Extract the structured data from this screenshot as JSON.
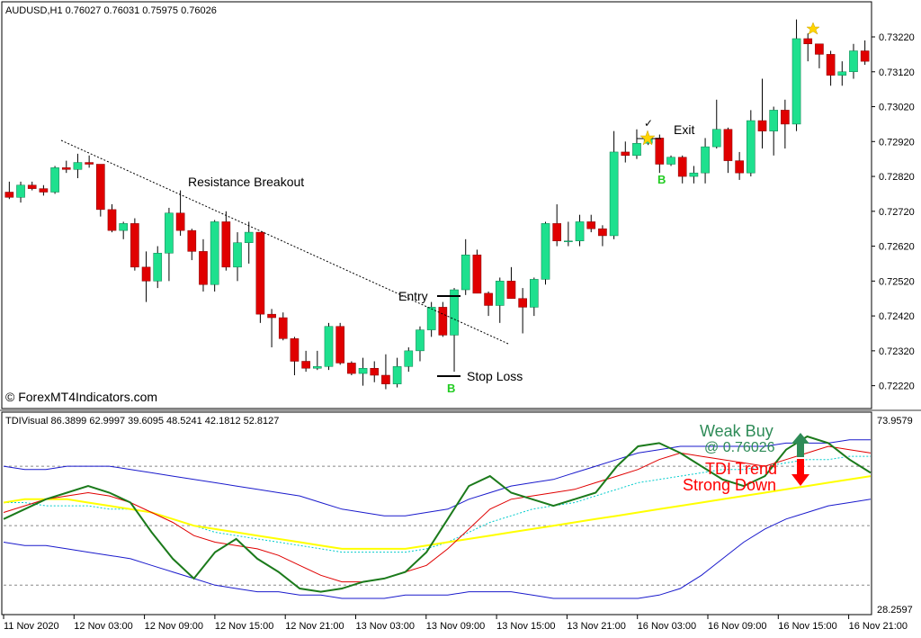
{
  "main_panel": {
    "symbol_info": "AUDUSD,H1  0.76027 0.76031 0.75975 0.76026",
    "watermark": "© ForexMT4Indicators.com",
    "price_ticks": [
      "0.73220",
      "0.73120",
      "0.73020",
      "0.72920",
      "0.72820",
      "0.72720",
      "0.72620",
      "0.72520",
      "0.72420",
      "0.72320",
      "0.72220"
    ],
    "annotations": {
      "resistance_breakout": "Resistance Breakout",
      "entry": "Entry",
      "stop_loss": "Stop Loss",
      "exit": "Exit",
      "buy_marker_1": "B",
      "buy_marker_2": "B",
      "check": "✓"
    }
  },
  "indicator_panel": {
    "header": "TDIVisual 86.3899 62.9997 39.6095 48.5241 42.1812 52.8127",
    "top_tick": "73.9579",
    "bottom_tick": "28.2597",
    "signal_text_1": "Weak Buy",
    "signal_text_2": "@ 0.76026",
    "trend_text_1": "TDI Trend",
    "trend_text_2": "Strong Down"
  },
  "time_axis": [
    "11 Nov 2020",
    "12 Nov 03:00",
    "12 Nov 09:00",
    "12 Nov 15:00",
    "12 Nov 21:00",
    "13 Nov 03:00",
    "13 Nov 09:00",
    "13 Nov 15:00",
    "13 Nov 21:00",
    "16 Nov 03:00",
    "16 Nov 09:00",
    "16 Nov 15:00",
    "16 Nov 21:00"
  ],
  "colors": {
    "bull": "#1ee08e",
    "bear": "#e00000",
    "rsi": "#1b7a1b",
    "signal": "#e00000",
    "band": "#1a1acc",
    "midband": "#00cccc",
    "market_base": "#ffff00",
    "weak_buy": "#2e8b57",
    "trend_down": "#ff0000"
  },
  "chart_data": {
    "type": "candlestick",
    "candles": [
      [
        0.72775,
        0.72805,
        0.72755,
        0.7276
      ],
      [
        0.7276,
        0.72805,
        0.72745,
        0.72795
      ],
      [
        0.72795,
        0.72805,
        0.7278,
        0.72785
      ],
      [
        0.72785,
        0.72795,
        0.72765,
        0.72775
      ],
      [
        0.72775,
        0.7285,
        0.7277,
        0.72845
      ],
      [
        0.72845,
        0.72865,
        0.7283,
        0.7284
      ],
      [
        0.7284,
        0.72885,
        0.72815,
        0.7286
      ],
      [
        0.7286,
        0.7288,
        0.72845,
        0.72855
      ],
      [
        0.72855,
        0.7285,
        0.72705,
        0.72725
      ],
      [
        0.72725,
        0.7274,
        0.7266,
        0.72665
      ],
      [
        0.72665,
        0.7269,
        0.7264,
        0.72685
      ],
      [
        0.72685,
        0.727,
        0.7255,
        0.7256
      ],
      [
        0.7256,
        0.72605,
        0.7246,
        0.7252
      ],
      [
        0.7252,
        0.7262,
        0.725,
        0.726
      ],
      [
        0.726,
        0.7273,
        0.7252,
        0.72715
      ],
      [
        0.72715,
        0.7278,
        0.7265,
        0.72665
      ],
      [
        0.72665,
        0.7267,
        0.7258,
        0.72605
      ],
      [
        0.72605,
        0.7264,
        0.7249,
        0.7251
      ],
      [
        0.7251,
        0.72695,
        0.7249,
        0.7269
      ],
      [
        0.7269,
        0.7272,
        0.7255,
        0.7256
      ],
      [
        0.7256,
        0.7266,
        0.7252,
        0.7263
      ],
      [
        0.7263,
        0.7269,
        0.7257,
        0.7266
      ],
      [
        0.7266,
        0.72655,
        0.724,
        0.72425
      ],
      [
        0.72425,
        0.7244,
        0.7233,
        0.72415
      ],
      [
        0.72415,
        0.7243,
        0.7235,
        0.72355
      ],
      [
        0.72355,
        0.7236,
        0.7225,
        0.7229
      ],
      [
        0.7229,
        0.7232,
        0.7226,
        0.7227
      ],
      [
        0.7227,
        0.7232,
        0.72265,
        0.72275
      ],
      [
        0.72275,
        0.724,
        0.72265,
        0.7239
      ],
      [
        0.7239,
        0.724,
        0.7228,
        0.72285
      ],
      [
        0.72285,
        0.7229,
        0.7225,
        0.72255
      ],
      [
        0.72255,
        0.723,
        0.7222,
        0.7227
      ],
      [
        0.7227,
        0.7229,
        0.7223,
        0.7225
      ],
      [
        0.7225,
        0.7231,
        0.7221,
        0.72225
      ],
      [
        0.72225,
        0.723,
        0.72215,
        0.72275
      ],
      [
        0.72275,
        0.7233,
        0.7226,
        0.7232
      ],
      [
        0.7232,
        0.7239,
        0.7229,
        0.7238
      ],
      [
        0.7238,
        0.7246,
        0.7236,
        0.72445
      ],
      [
        0.72445,
        0.7246,
        0.7236,
        0.72365
      ],
      [
        0.72365,
        0.725,
        0.7226,
        0.72495
      ],
      [
        0.72495,
        0.7264,
        0.7248,
        0.72595
      ],
      [
        0.72595,
        0.7261,
        0.72485,
        0.72485
      ],
      [
        0.72485,
        0.7249,
        0.7242,
        0.7245
      ],
      [
        0.7245,
        0.7253,
        0.724,
        0.7252
      ],
      [
        0.7252,
        0.7256,
        0.7247,
        0.7247
      ],
      [
        0.7247,
        0.725,
        0.7237,
        0.72445
      ],
      [
        0.72445,
        0.7253,
        0.7242,
        0.72525
      ],
      [
        0.72525,
        0.7269,
        0.7251,
        0.72685
      ],
      [
        0.72685,
        0.7274,
        0.7262,
        0.72635
      ],
      [
        0.72635,
        0.7269,
        0.7262,
        0.72635
      ],
      [
        0.72635,
        0.7271,
        0.7262,
        0.7269
      ],
      [
        0.7269,
        0.7271,
        0.7266,
        0.7267
      ],
      [
        0.7267,
        0.7268,
        0.7262,
        0.7265
      ],
      [
        0.7265,
        0.7295,
        0.7264,
        0.7289
      ],
      [
        0.7289,
        0.7292,
        0.7286,
        0.7288
      ],
      [
        0.7288,
        0.72955,
        0.7287,
        0.72915
      ],
      [
        0.72915,
        0.72935,
        0.7291,
        0.7293
      ],
      [
        0.7293,
        0.7294,
        0.7283,
        0.72855
      ],
      [
        0.72855,
        0.7288,
        0.7285,
        0.72875
      ],
      [
        0.72875,
        0.7288,
        0.728,
        0.7282
      ],
      [
        0.7282,
        0.7285,
        0.728,
        0.7283
      ],
      [
        0.7283,
        0.7293,
        0.728,
        0.72905
      ],
      [
        0.72905,
        0.7304,
        0.729,
        0.72955
      ],
      [
        0.72955,
        0.7296,
        0.7283,
        0.72865
      ],
      [
        0.72865,
        0.7289,
        0.7281,
        0.7283
      ],
      [
        0.7283,
        0.7301,
        0.7282,
        0.7298
      ],
      [
        0.7298,
        0.731,
        0.729,
        0.7295
      ],
      [
        0.7295,
        0.7302,
        0.7288,
        0.7301
      ],
      [
        0.7301,
        0.7304,
        0.729,
        0.7297
      ],
      [
        0.7297,
        0.7327,
        0.7295,
        0.73215
      ],
      [
        0.73215,
        0.7323,
        0.7315,
        0.732
      ],
      [
        0.732,
        0.7319,
        0.7313,
        0.7317
      ],
      [
        0.7317,
        0.7318,
        0.7308,
        0.7311
      ],
      [
        0.7311,
        0.7315,
        0.7308,
        0.7312
      ],
      [
        0.7312,
        0.732,
        0.731,
        0.7318
      ],
      [
        0.7318,
        0.7321,
        0.7314,
        0.7315
      ]
    ],
    "price_range": [
      0.7217,
      0.733
    ],
    "tdi": {
      "rsi": [
        52,
        55,
        58,
        60,
        62,
        60,
        57,
        48,
        40,
        34,
        42,
        46,
        40,
        36,
        31,
        30,
        31,
        33,
        34,
        36,
        42,
        52,
        62,
        65,
        60,
        58,
        56,
        58,
        60,
        68,
        74,
        75,
        72,
        68,
        64,
        62,
        65,
        73,
        77,
        75,
        70,
        66
      ],
      "signal": [
        54,
        56,
        58,
        59,
        60,
        59,
        57,
        54,
        51,
        47,
        45,
        44,
        43,
        41,
        38,
        35,
        33,
        33,
        34,
        36,
        38,
        43,
        49,
        55,
        58,
        59,
        60,
        61,
        63,
        65,
        67,
        70,
        72,
        71,
        70,
        69,
        68,
        70,
        72,
        74,
        73,
        72
      ],
      "market_base": [
        57,
        58,
        58,
        58,
        57,
        56,
        55,
        54,
        52,
        50,
        49,
        48,
        47,
        46,
        45,
        44,
        43,
        43,
        43,
        43,
        44,
        45,
        46,
        47,
        48,
        49,
        50,
        51,
        52,
        53,
        54,
        55,
        56,
        57,
        58,
        59,
        60,
        61,
        62,
        63,
        64,
        65
      ],
      "upper_band": [
        68,
        67,
        67,
        68,
        68,
        68,
        67,
        66,
        65,
        64,
        63,
        62,
        61,
        60,
        59,
        57,
        55,
        54,
        53,
        53,
        54,
        55,
        58,
        60,
        62,
        63,
        64,
        66,
        68,
        70,
        72,
        73,
        74,
        74,
        74,
        74,
        74,
        75,
        75,
        75,
        76,
        76
      ],
      "mid_band": [
        57,
        57,
        56,
        56,
        56,
        55,
        55,
        54,
        52,
        50,
        48,
        47,
        46,
        45,
        44,
        43,
        42,
        42,
        42,
        42,
        43,
        45,
        48,
        51,
        53,
        55,
        56,
        57,
        59,
        61,
        63,
        64,
        65,
        66,
        67,
        67,
        68,
        69,
        70,
        70,
        71,
        71
      ],
      "lower_band": [
        45,
        44,
        44,
        43,
        42,
        41,
        40,
        38,
        36,
        34,
        32,
        31,
        30,
        30,
        29,
        29,
        28,
        28,
        28,
        29,
        29,
        29,
        30,
        30,
        30,
        29,
        28,
        28,
        28,
        28,
        28,
        29,
        31,
        35,
        40,
        45,
        49,
        52,
        54,
        56,
        57,
        58
      ],
      "range": [
        25,
        80
      ]
    }
  }
}
